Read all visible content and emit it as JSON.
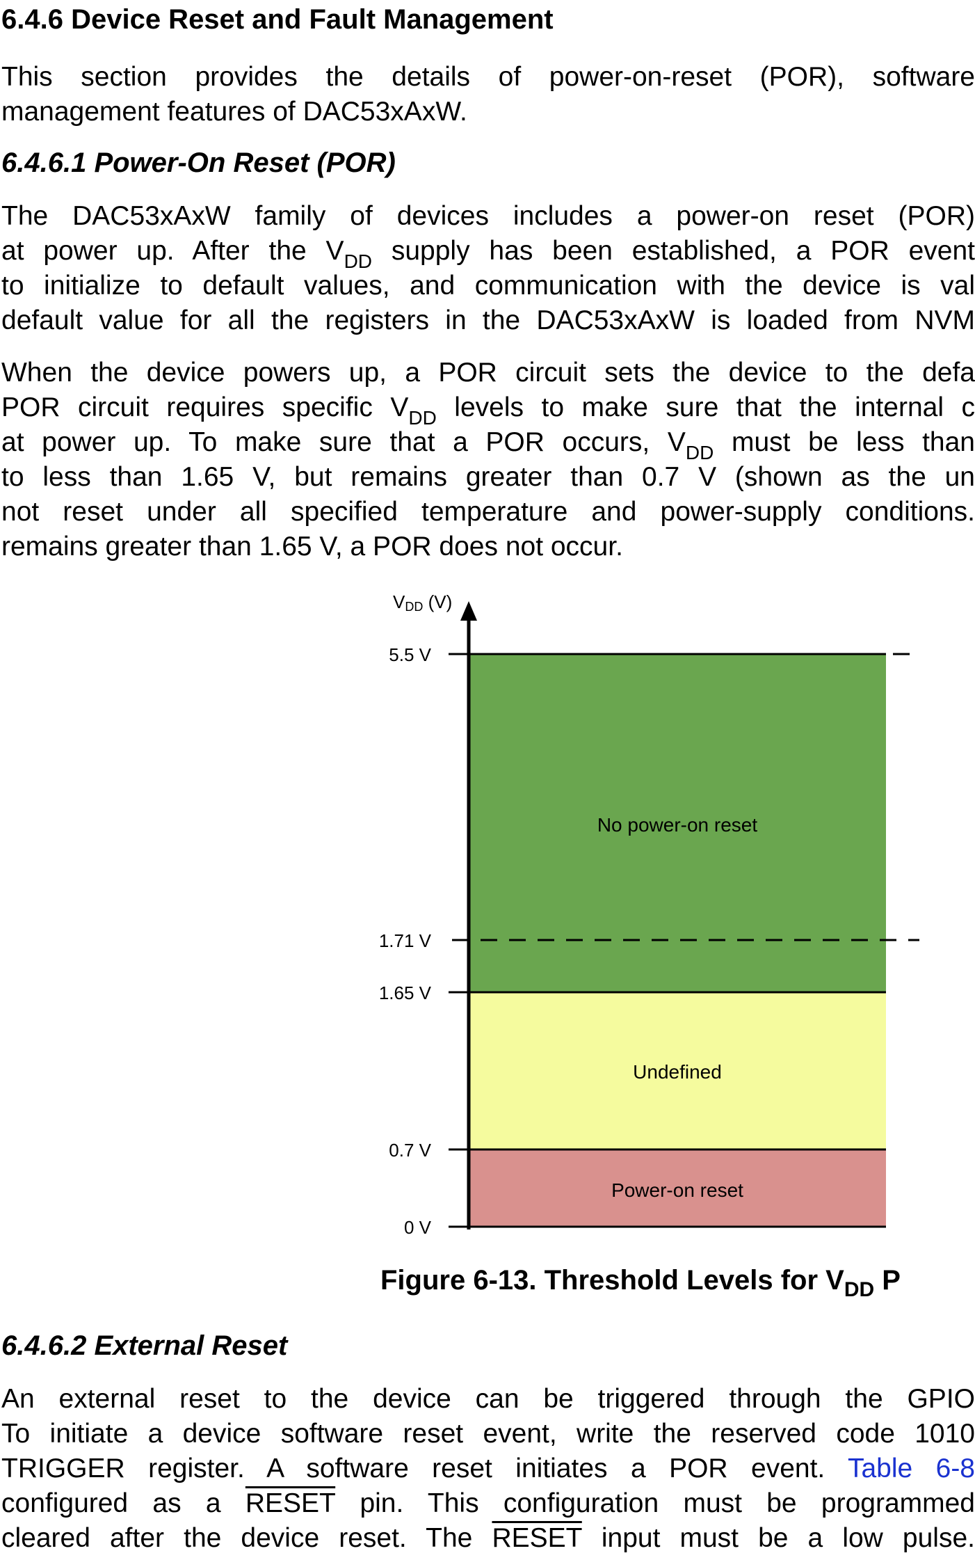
{
  "section": {
    "heading": "6.4.6 Device Reset and Fault Management"
  },
  "intro": {
    "lines": [
      "This section provides the details of power-on-reset (POR), software",
      "management features of DAC53xAxW."
    ]
  },
  "por": {
    "heading": "6.4.6.1 Power-On Reset (POR)",
    "p1": {
      "l1": "The DAC53xAxW family of devices includes a power-on reset (POR)",
      "l2a": "at power up. After the V",
      "l2sub": "DD",
      "l2b": " supply has been established, a POR event",
      "l3": "to initialize to default values, and communication with the device is val",
      "l4": "default value for all the registers in the DAC53xAxW is loaded from NVM"
    },
    "p2": {
      "l1": "When the device powers up, a POR circuit sets the device to the defa",
      "l2a": "POR circuit requires specific V",
      "l2sub": "DD",
      "l2b": " levels to make sure that the internal c",
      "l3a": "at power up. To make sure that a POR occurs, V",
      "l3sub": "DD",
      "l3b": " must be less than",
      "l4": "to less than 1.65 V, but remains greater than 0.7 V (shown as the un",
      "l5": "not reset under all specified temperature and power-supply conditions.",
      "l6": "remains greater than 1.65 V, a POR does not occur."
    }
  },
  "chart_data": {
    "type": "diagram",
    "ylabel_main": "V",
    "ylabel_sub": "DD",
    "ylabel_unit": " (V)",
    "levels": [
      0,
      0.7,
      1.65,
      1.71,
      5.5
    ],
    "tick_labels": [
      "0 V",
      "0.7 V",
      "1.65 V",
      "1.71 V",
      "5.5 V"
    ],
    "regions": [
      {
        "label": "Power-on reset",
        "from": 0,
        "to": 0.7,
        "color": "#d9918e"
      },
      {
        "label": "Undefined",
        "from": 0.7,
        "to": 1.65,
        "color": "#f5fb9e"
      },
      {
        "label": "No power-on reset",
        "from": 1.65,
        "to": 5.5,
        "color": "#6aa64f"
      }
    ],
    "dashed_levels": [
      1.71
    ]
  },
  "figure": {
    "caption_main": "Figure 6-13. Threshold Levels for V",
    "caption_sub": "DD",
    "caption_tail": " P"
  },
  "ext": {
    "heading": "6.4.6.2 External Reset",
    "l1": "An external reset to the device can be triggered through the GPIO",
    "l2": "To initiate a device software reset event, write the reserved code 1010",
    "l3a": "TRIGGER register. A software reset initiates a POR event. ",
    "l3link": "Table 6-8",
    "l4a": "configured as a ",
    "l4ov": "RESET",
    "l4b": " pin. This configuration must be programmed",
    "l5a": "cleared after the device reset. The ",
    "l5ov": "RESET",
    "l5b": " input must be a low pulse."
  }
}
